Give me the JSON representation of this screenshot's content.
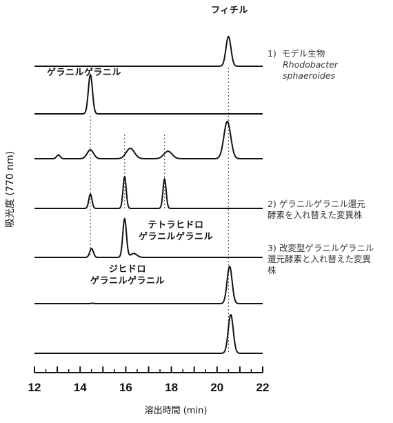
{
  "chart_data": {
    "type": "line",
    "xlabel": "溶出時間 (min)",
    "ylabel": "吸光度 (770 nm)",
    "xlim": [
      12,
      22
    ],
    "xticks": [
      12,
      14,
      16,
      18,
      20,
      22
    ],
    "grid": false,
    "series": [
      {
        "peaks": [
          {
            "x": 20.5,
            "h": 1.0,
            "w": 0.11
          }
        ],
        "noise": []
      },
      {
        "peaks": [
          {
            "x": 14.45,
            "h": 1.0,
            "w": 0.09
          }
        ],
        "noise": []
      },
      {
        "peaks": [
          {
            "x": 13.05,
            "h": 0.1,
            "w": 0.08
          },
          {
            "x": 14.45,
            "h": 0.24,
            "w": 0.14
          },
          {
            "x": 16.2,
            "h": 0.28,
            "w": 0.18
          },
          {
            "x": 17.85,
            "h": 0.2,
            "w": 0.18
          },
          {
            "x": 20.45,
            "h": 1.0,
            "w": 0.15
          }
        ],
        "noise": []
      },
      {
        "peaks": [
          {
            "x": 14.45,
            "h": 0.37,
            "w": 0.07
          },
          {
            "x": 15.95,
            "h": 0.82,
            "w": 0.07
          },
          {
            "x": 17.7,
            "h": 0.76,
            "w": 0.07
          }
        ],
        "noise": []
      },
      {
        "peaks": [
          {
            "x": 14.5,
            "h": 0.23,
            "w": 0.08
          },
          {
            "x": 15.95,
            "h": 1.0,
            "w": 0.08
          },
          {
            "x": 16.35,
            "h": 0.1,
            "w": 0.14
          }
        ],
        "noise": []
      },
      {
        "peaks": [
          {
            "x": 20.55,
            "h": 1.0,
            "w": 0.11
          }
        ],
        "noise": [
          {
            "x": 14.55,
            "h": 0.01,
            "w": 0.06
          }
        ]
      },
      {
        "peaks": [
          {
            "x": 20.6,
            "h": 1.0,
            "w": 0.11
          }
        ],
        "noise": []
      }
    ],
    "reference_lines": [
      14.45,
      15.95,
      17.7,
      20.5
    ],
    "annotations": {
      "phytyl": "フィチル",
      "gg": "ゲラニルゲラニル",
      "thgg_1": "テトラヒドロ",
      "thgg_2": "ゲラニルゲラニル",
      "dhgg_1": "ジヒドロ",
      "dhgg_2": "ゲラニルゲラニル"
    },
    "legend": [
      {
        "num": "1)",
        "line1": "モデル生物",
        "line2": "Rhodobacter",
        "line3": "sphaeroides"
      },
      {
        "num": "2)",
        "line1": "ゲラニルゲラニル還元",
        "line2": "酵素を入れ替えた変異株"
      },
      {
        "num": "3)",
        "line1": "改変型ゲラニルゲラニル",
        "line2": "還元酵素と入れ替えた変異",
        "line3": "株"
      }
    ]
  }
}
